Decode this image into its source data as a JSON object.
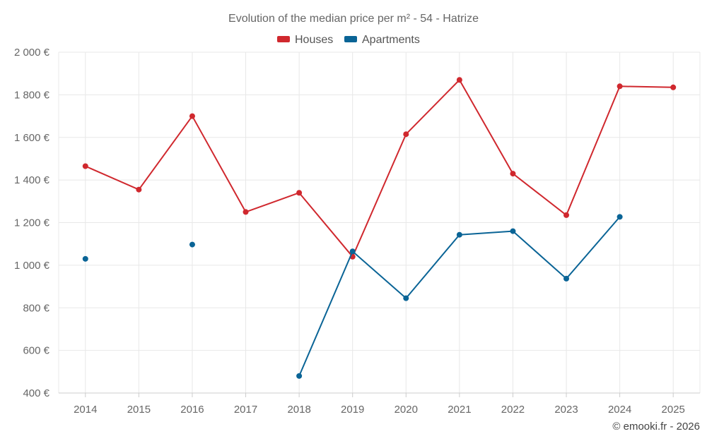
{
  "chart_data": {
    "type": "line",
    "title": "Evolution of the median price per m² - 54 - Hatrize",
    "categories": [
      "2014",
      "2015",
      "2016",
      "2017",
      "2018",
      "2019",
      "2020",
      "2021",
      "2022",
      "2023",
      "2024",
      "2025"
    ],
    "ylim": [
      400,
      2000
    ],
    "yticks": [
      400,
      600,
      800,
      1000,
      1200,
      1400,
      1600,
      1800,
      2000
    ],
    "ytick_labels": [
      "400 €",
      "600 €",
      "800 €",
      "1 000 €",
      "1 200 €",
      "1 400 €",
      "1 600 €",
      "1 800 €",
      "2 000 €"
    ],
    "grid": true,
    "legend_position": "top-center",
    "series": [
      {
        "name": "Houses",
        "color": "#d0282e",
        "values": [
          1465,
          1355,
          1700,
          1250,
          1340,
          1040,
          1615,
          1870,
          1430,
          1235,
          1840,
          1835
        ]
      },
      {
        "name": "Apartments",
        "color": "#0a6496",
        "values": [
          1030,
          null,
          1097,
          null,
          480,
          1065,
          845,
          1143,
          1160,
          937,
          1227,
          null
        ]
      }
    ]
  },
  "credit": "© emooki.fr - 2026"
}
